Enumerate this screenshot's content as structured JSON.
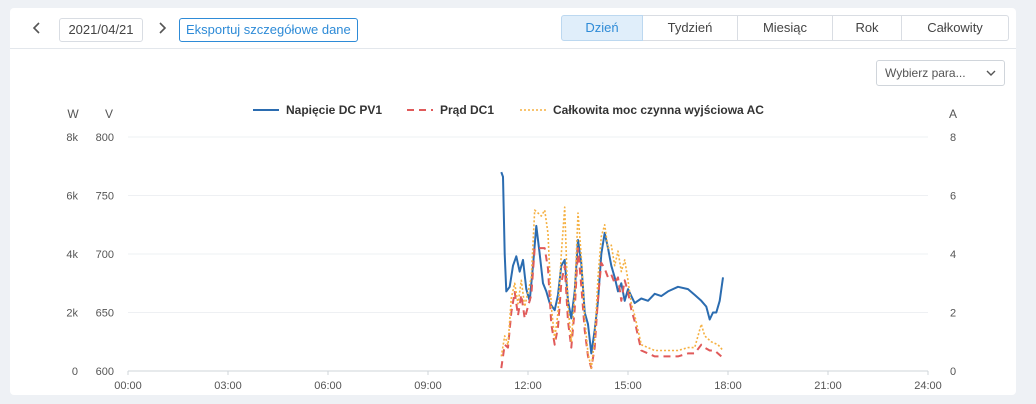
{
  "toolbar": {
    "prev_icon": "chevron-left-icon",
    "next_icon": "chevron-right-icon",
    "date": "2021/04/21",
    "export_label": "Eksportuj szczegółowe dane",
    "periods": [
      "Dzień",
      "Tydzień",
      "Miesiąc",
      "Rok",
      "Całkowity"
    ],
    "active_period": "Dzień",
    "accent_color": "#2e8bd7"
  },
  "param_select": {
    "placeholder": "Wybierz para...",
    "icon": "chevron-down-icon"
  },
  "chart_data": {
    "type": "line",
    "grid": true,
    "legend_position": "top-center",
    "x_ticks": [
      "00:00",
      "03:00",
      "06:00",
      "09:00",
      "12:00",
      "15:00",
      "18:00",
      "21:00",
      "24:00"
    ],
    "xlim": [
      0,
      24
    ],
    "axes": {
      "left_w": {
        "unit": "W",
        "ticks": [
          "0",
          "2k",
          "4k",
          "6k",
          "8k"
        ],
        "ylim": [
          0,
          8000
        ]
      },
      "left_v": {
        "unit": "V",
        "ticks": [
          "600",
          "650",
          "700",
          "750",
          "800"
        ],
        "ylim": [
          600,
          800
        ]
      },
      "right_a": {
        "unit": "A",
        "ticks": [
          "0",
          "2",
          "4",
          "6",
          "8"
        ],
        "ylim": [
          0,
          8
        ]
      }
    },
    "series": [
      {
        "name": "Napięcie DC PV1",
        "axis": "left_v",
        "color": "#2b6cb0",
        "style": "solid",
        "points": [
          [
            11.2,
            770
          ],
          [
            11.25,
            766
          ],
          [
            11.3,
            700
          ],
          [
            11.35,
            668
          ],
          [
            11.45,
            672
          ],
          [
            11.55,
            690
          ],
          [
            11.65,
            698
          ],
          [
            11.75,
            685
          ],
          [
            11.85,
            695
          ],
          [
            11.95,
            670
          ],
          [
            12.05,
            660
          ],
          [
            12.15,
            690
          ],
          [
            12.25,
            724
          ],
          [
            12.35,
            700
          ],
          [
            12.45,
            675
          ],
          [
            12.55,
            668
          ],
          [
            12.65,
            658
          ],
          [
            12.8,
            652
          ],
          [
            12.9,
            665
          ],
          [
            13.0,
            690
          ],
          [
            13.1,
            695
          ],
          [
            13.2,
            660
          ],
          [
            13.3,
            645
          ],
          [
            13.4,
            668
          ],
          [
            13.5,
            712
          ],
          [
            13.6,
            692
          ],
          [
            13.7,
            650
          ],
          [
            13.8,
            640
          ],
          [
            13.9,
            615
          ],
          [
            14.0,
            635
          ],
          [
            14.1,
            660
          ],
          [
            14.2,
            700
          ],
          [
            14.3,
            718
          ],
          [
            14.4,
            705
          ],
          [
            14.5,
            690
          ],
          [
            14.6,
            680
          ],
          [
            14.7,
            668
          ],
          [
            14.8,
            675
          ],
          [
            14.9,
            660
          ],
          [
            15.0,
            670
          ],
          [
            15.1,
            664
          ],
          [
            15.2,
            658
          ],
          [
            15.4,
            662
          ],
          [
            15.6,
            660
          ],
          [
            15.8,
            666
          ],
          [
            16.0,
            664
          ],
          [
            16.2,
            668
          ],
          [
            16.5,
            672
          ],
          [
            16.8,
            670
          ],
          [
            17.0,
            665
          ],
          [
            17.2,
            660
          ],
          [
            17.35,
            655
          ],
          [
            17.45,
            644
          ],
          [
            17.55,
            650
          ],
          [
            17.65,
            650
          ],
          [
            17.75,
            660
          ],
          [
            17.85,
            680
          ]
        ]
      },
      {
        "name": "Prąd DC1",
        "axis": "right_a",
        "color": "#e05a5a",
        "style": "dashed",
        "points": [
          [
            11.2,
            0.1
          ],
          [
            11.3,
            0.9
          ],
          [
            11.4,
            0.8
          ],
          [
            11.5,
            2.0
          ],
          [
            11.6,
            2.7
          ],
          [
            11.7,
            1.9
          ],
          [
            11.8,
            2.6
          ],
          [
            11.9,
            1.8
          ],
          [
            12.0,
            2.2
          ],
          [
            12.1,
            2.6
          ],
          [
            12.2,
            4.2
          ],
          [
            12.3,
            4.2
          ],
          [
            12.5,
            4.2
          ],
          [
            12.6,
            3.5
          ],
          [
            12.7,
            1.6
          ],
          [
            12.8,
            0.9
          ],
          [
            12.9,
            1.5
          ],
          [
            13.0,
            3.0
          ],
          [
            13.1,
            3.6
          ],
          [
            13.2,
            1.7
          ],
          [
            13.3,
            0.8
          ],
          [
            13.4,
            2.1
          ],
          [
            13.5,
            4.2
          ],
          [
            13.6,
            2.9
          ],
          [
            13.7,
            1.4
          ],
          [
            13.8,
            0.5
          ],
          [
            13.9,
            0.1
          ],
          [
            14.0,
            0.8
          ],
          [
            14.1,
            2.5
          ],
          [
            14.2,
            3.7
          ],
          [
            14.3,
            3.5
          ],
          [
            14.4,
            3.2
          ],
          [
            14.5,
            3.3
          ],
          [
            14.6,
            3.0
          ],
          [
            14.7,
            3.2
          ],
          [
            14.8,
            2.4
          ],
          [
            14.9,
            3.1
          ],
          [
            15.0,
            2.7
          ],
          [
            15.1,
            2.1
          ],
          [
            15.2,
            1.7
          ],
          [
            15.3,
            1.2
          ],
          [
            15.4,
            0.7
          ],
          [
            15.6,
            0.6
          ],
          [
            15.8,
            0.5
          ],
          [
            16.2,
            0.5
          ],
          [
            16.5,
            0.5
          ],
          [
            16.8,
            0.6
          ],
          [
            17.0,
            0.6
          ],
          [
            17.2,
            0.9
          ],
          [
            17.3,
            0.8
          ],
          [
            17.45,
            0.7
          ],
          [
            17.6,
            0.7
          ],
          [
            17.8,
            0.5
          ]
        ]
      },
      {
        "name": "Całkowita moc czynna wyjściowa AC",
        "axis": "left_w",
        "color": "#f5b041",
        "style": "dotted",
        "points": [
          [
            11.2,
            500
          ],
          [
            11.3,
            1200
          ],
          [
            11.4,
            900
          ],
          [
            11.5,
            2500
          ],
          [
            11.6,
            3000
          ],
          [
            11.7,
            2300
          ],
          [
            11.8,
            3100
          ],
          [
            11.9,
            2200
          ],
          [
            12.0,
            2700
          ],
          [
            12.1,
            3200
          ],
          [
            12.2,
            5500
          ],
          [
            12.3,
            5400
          ],
          [
            12.4,
            5300
          ],
          [
            12.5,
            5500
          ],
          [
            12.6,
            4700
          ],
          [
            12.7,
            2200
          ],
          [
            12.8,
            1100
          ],
          [
            12.9,
            2000
          ],
          [
            13.0,
            4000
          ],
          [
            13.1,
            5600
          ],
          [
            13.2,
            2200
          ],
          [
            13.3,
            1000
          ],
          [
            13.4,
            2600
          ],
          [
            13.5,
            5400
          ],
          [
            13.6,
            3900
          ],
          [
            13.7,
            1800
          ],
          [
            13.8,
            600
          ],
          [
            13.9,
            100
          ],
          [
            14.0,
            1100
          ],
          [
            14.1,
            3200
          ],
          [
            14.2,
            4600
          ],
          [
            14.3,
            5000
          ],
          [
            14.4,
            4200
          ],
          [
            14.5,
            4300
          ],
          [
            14.6,
            3600
          ],
          [
            14.7,
            4100
          ],
          [
            14.8,
            3400
          ],
          [
            14.9,
            3800
          ],
          [
            15.0,
            3100
          ],
          [
            15.1,
            2300
          ],
          [
            15.2,
            1900
          ],
          [
            15.3,
            1400
          ],
          [
            15.4,
            900
          ],
          [
            15.6,
            800
          ],
          [
            15.8,
            700
          ],
          [
            16.2,
            700
          ],
          [
            16.5,
            700
          ],
          [
            16.8,
            800
          ],
          [
            17.0,
            800
          ],
          [
            17.1,
            1200
          ],
          [
            17.2,
            1600
          ],
          [
            17.3,
            1200
          ],
          [
            17.5,
            1000
          ],
          [
            17.7,
            900
          ],
          [
            17.85,
            700
          ]
        ]
      }
    ]
  }
}
